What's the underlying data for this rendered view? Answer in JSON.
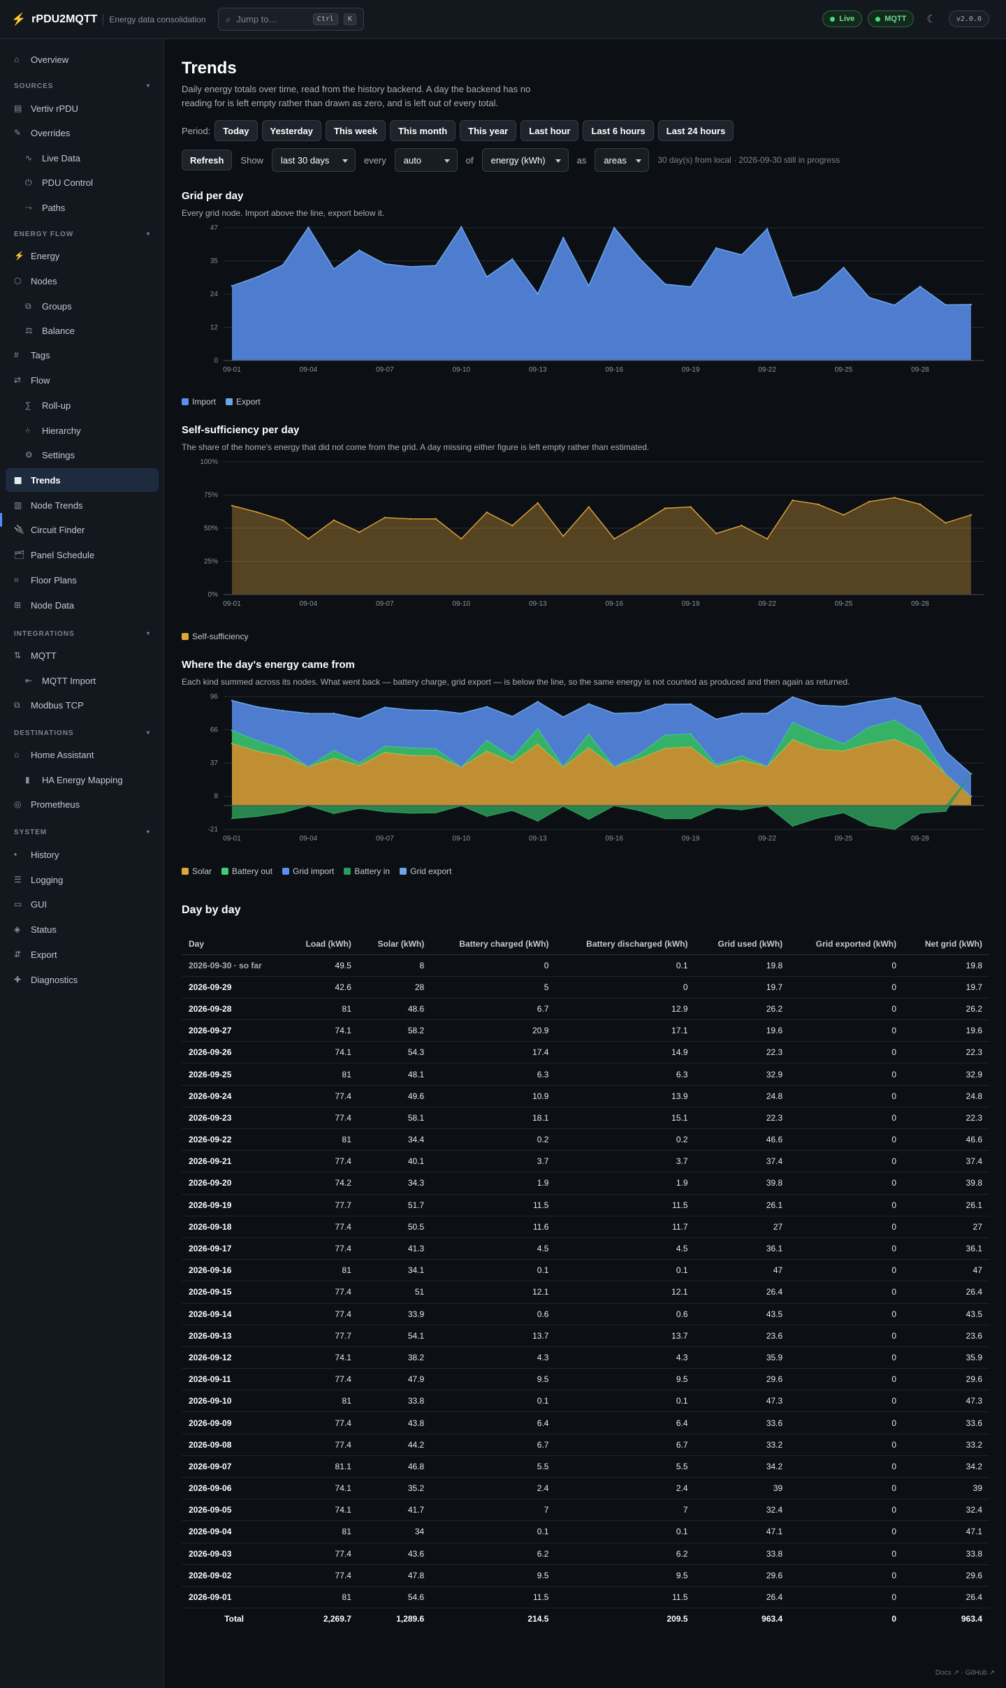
{
  "app": {
    "name": "rPDU2MQTT",
    "subtitle": "Energy data consolidation",
    "version": "v2.0.0"
  },
  "search": {
    "placeholder": "Jump to…",
    "kbd1": "Ctrl",
    "kbd2": "K"
  },
  "status": {
    "live": "Live",
    "mqtt": "MQTT"
  },
  "sidebar": {
    "overview": "Overview",
    "sources_title": "SOURCES",
    "sources": [
      "Vertiv rPDU",
      "Overrides",
      "Live Data",
      "PDU Control",
      "Paths"
    ],
    "energy_title": "ENERGY FLOW",
    "energy": [
      "Energy",
      "Nodes",
      "Groups",
      "Balance",
      "Tags",
      "Flow",
      "Roll-up",
      "Hierarchy",
      "Settings",
      "Trends",
      "Node Trends",
      "Circuit Finder",
      "Panel Schedule",
      "Floor Plans",
      "Node Data"
    ],
    "integrations_title": "INTEGRATIONS",
    "integrations": [
      "MQTT",
      "MQTT Import",
      "Modbus TCP"
    ],
    "destinations_title": "DESTINATIONS",
    "destinations": [
      "Home Assistant",
      "HA Energy Mapping",
      "Prometheus"
    ],
    "system_title": "SYSTEM",
    "system": [
      "History",
      "Logging",
      "GUI",
      "Status",
      "Export",
      "Diagnostics"
    ]
  },
  "page": {
    "title": "Trends",
    "lead": "Daily energy totals over time, read from the history backend. A day the backend has no reading for is left empty rather than drawn as zero, and is left out of every total.",
    "period_label": "Period:",
    "periods": [
      "Today",
      "Yesterday",
      "This week",
      "This month",
      "This year",
      "Last hour",
      "Last 6 hours",
      "Last 24 hours"
    ],
    "refresh": "Refresh",
    "show_label": "Show",
    "show_value": "last 30 days",
    "every_label": "every",
    "every_value": "auto",
    "of_label": "of",
    "of_value": "energy (kWh)",
    "as_label": "as",
    "as_value": "areas",
    "range_note": "30 day(s) from local · 2026-09-30 still in progress"
  },
  "sections": {
    "grid_title": "Grid per day",
    "grid_sub": "Every grid node. Import above the line, export below it.",
    "self_title": "Self-sufficiency per day",
    "self_sub": "The share of the home's energy that did not come from the grid. A day missing either figure is left empty rather than estimated.",
    "source_title": "Where the day's energy came from",
    "source_sub": "Each kind summed across its nodes. What went back — battery charge, grid export — is below the line, so the same energy is not counted as produced and then again as returned.",
    "table_title": "Day by day"
  },
  "colors": {
    "import": "#5b8ff0",
    "export": "#6aa6e8",
    "self": "#e0a63a",
    "solar": "#e0a63a",
    "battery_out": "#3ecf74",
    "grid_import": "#5b8ff0",
    "battery_in": "#2e9a58",
    "grid_export": "#6aa6e8"
  },
  "chart_data": [
    {
      "type": "area",
      "title": "Grid per day",
      "x": [
        "09-01",
        "09-02",
        "09-03",
        "09-04",
        "09-05",
        "09-06",
        "09-07",
        "09-08",
        "09-09",
        "09-10",
        "09-11",
        "09-12",
        "09-13",
        "09-14",
        "09-15",
        "09-16",
        "09-17",
        "09-18",
        "09-19",
        "09-20",
        "09-21",
        "09-22",
        "09-23",
        "09-24",
        "09-25",
        "09-26",
        "09-27",
        "09-28",
        "09-29",
        "09-30"
      ],
      "x_ticks": [
        "09-01",
        "09-04",
        "09-07",
        "09-10",
        "09-13",
        "09-16",
        "09-19",
        "09-22",
        "09-25",
        "09-28"
      ],
      "y_ticks": [
        "47",
        "35",
        "24",
        "12",
        "0"
      ],
      "ylim": [
        0,
        47
      ],
      "series": [
        {
          "name": "Import",
          "values": [
            26.4,
            29.6,
            33.8,
            47.1,
            32.4,
            39,
            34.2,
            33.2,
            33.6,
            47.3,
            29.6,
            35.9,
            23.6,
            43.5,
            26.4,
            47,
            36.1,
            27,
            26.1,
            39.8,
            37.4,
            46.6,
            22.3,
            24.8,
            32.9,
            22.3,
            19.6,
            26.2,
            19.7,
            19.8
          ]
        },
        {
          "name": "Export",
          "values": [
            0,
            0,
            0,
            0,
            0,
            0,
            0,
            0,
            0,
            0,
            0,
            0,
            0,
            0,
            0,
            0,
            0,
            0,
            0,
            0,
            0,
            0,
            0,
            0,
            0,
            0,
            0,
            0,
            0,
            0
          ]
        }
      ],
      "grid": true,
      "legend": "bottom-left"
    },
    {
      "type": "area",
      "title": "Self-sufficiency per day",
      "x": [
        "09-01",
        "09-02",
        "09-03",
        "09-04",
        "09-05",
        "09-06",
        "09-07",
        "09-08",
        "09-09",
        "09-10",
        "09-11",
        "09-12",
        "09-13",
        "09-14",
        "09-15",
        "09-16",
        "09-17",
        "09-18",
        "09-19",
        "09-20",
        "09-21",
        "09-22",
        "09-23",
        "09-24",
        "09-25",
        "09-26",
        "09-27",
        "09-28",
        "09-29",
        "09-30"
      ],
      "x_ticks": [
        "09-01",
        "09-04",
        "09-07",
        "09-10",
        "09-13",
        "09-16",
        "09-19",
        "09-22",
        "09-25",
        "09-28"
      ],
      "y_ticks": [
        "100%",
        "75%",
        "50%",
        "25%",
        "0%"
      ],
      "ylim": [
        0,
        100
      ],
      "series": [
        {
          "name": "Self-sufficiency",
          "values": [
            67,
            62,
            56,
            42,
            56,
            47,
            58,
            57,
            57,
            42,
            62,
            52,
            69,
            44,
            66,
            42,
            53,
            65,
            66,
            46,
            52,
            42,
            71,
            68,
            60,
            70,
            73,
            68,
            54,
            60
          ]
        }
      ],
      "grid": true,
      "legend": "bottom-left"
    },
    {
      "type": "area",
      "title": "Where the day's energy came from",
      "x": [
        "09-01",
        "09-02",
        "09-03",
        "09-04",
        "09-05",
        "09-06",
        "09-07",
        "09-08",
        "09-09",
        "09-10",
        "09-11",
        "09-12",
        "09-13",
        "09-14",
        "09-15",
        "09-16",
        "09-17",
        "09-18",
        "09-19",
        "09-20",
        "09-21",
        "09-22",
        "09-23",
        "09-24",
        "09-25",
        "09-26",
        "09-27",
        "09-28",
        "09-29",
        "09-30"
      ],
      "x_ticks": [
        "09-01",
        "09-04",
        "09-07",
        "09-10",
        "09-13",
        "09-16",
        "09-19",
        "09-22",
        "09-25",
        "09-28"
      ],
      "y_ticks": [
        "96",
        "66",
        "37",
        "8",
        "-21"
      ],
      "ylim": [
        -21,
        96
      ],
      "series": [
        {
          "name": "Solar",
          "values": [
            54.6,
            47.8,
            43.6,
            34,
            41.7,
            35.2,
            46.8,
            44.2,
            43.8,
            33.8,
            47.9,
            38.2,
            54.1,
            33.9,
            51,
            34.1,
            41.3,
            50.5,
            51.7,
            34.3,
            40.1,
            34.4,
            58.1,
            49.6,
            48.1,
            54.3,
            58.2,
            48.6,
            28,
            8
          ]
        },
        {
          "name": "Battery out",
          "values": [
            11.5,
            9.5,
            6.2,
            0.1,
            7,
            2.4,
            5.5,
            6.7,
            6.4,
            0.1,
            9.5,
            4.3,
            13.7,
            0.6,
            12.1,
            0.1,
            4.5,
            11.7,
            11.5,
            1.9,
            3.7,
            0.2,
            15.1,
            13.9,
            6.3,
            14.9,
            17.1,
            12.9,
            0,
            0.1
          ]
        },
        {
          "name": "Grid import",
          "values": [
            26.4,
            29.6,
            33.8,
            47.1,
            32.4,
            39,
            34.2,
            33.2,
            33.6,
            47.3,
            29.6,
            35.9,
            23.6,
            43.5,
            26.4,
            47,
            36.1,
            27,
            26.1,
            39.8,
            37.4,
            46.6,
            22.3,
            24.8,
            32.9,
            22.3,
            19.6,
            26.2,
            19.7,
            19.8
          ]
        },
        {
          "name": "Battery in",
          "values": [
            -11.5,
            -9.5,
            -6.2,
            -0.1,
            -7,
            -2.4,
            -5.5,
            -6.7,
            -6.4,
            -0.1,
            -9.5,
            -4.3,
            -13.7,
            -0.6,
            -12.1,
            -0.1,
            -4.5,
            -11.6,
            -11.5,
            -1.9,
            -3.7,
            -0.2,
            -18.1,
            -10.9,
            -6.3,
            -17.4,
            -20.9,
            -6.7,
            -5,
            0
          ]
        },
        {
          "name": "Grid export",
          "values": [
            0,
            0,
            0,
            0,
            0,
            0,
            0,
            0,
            0,
            0,
            0,
            0,
            0,
            0,
            0,
            0,
            0,
            0,
            0,
            0,
            0,
            0,
            0,
            0,
            0,
            0,
            0,
            0,
            0,
            0
          ]
        }
      ],
      "grid": true,
      "legend": "bottom-left"
    }
  ],
  "table": {
    "headers": [
      "Day",
      "Load (kWh)",
      "Solar (kWh)",
      "Battery charged (kWh)",
      "Battery discharged (kWh)",
      "Grid used (kWh)",
      "Grid exported (kWh)",
      "Net grid (kWh)"
    ],
    "rows": [
      [
        "2026-09-30 · so far",
        "49.5",
        "8",
        "0",
        "0.1",
        "19.8",
        "0",
        "19.8"
      ],
      [
        "2026-09-29",
        "42.6",
        "28",
        "5",
        "0",
        "19.7",
        "0",
        "19.7"
      ],
      [
        "2026-09-28",
        "81",
        "48.6",
        "6.7",
        "12.9",
        "26.2",
        "0",
        "26.2"
      ],
      [
        "2026-09-27",
        "74.1",
        "58.2",
        "20.9",
        "17.1",
        "19.6",
        "0",
        "19.6"
      ],
      [
        "2026-09-26",
        "74.1",
        "54.3",
        "17.4",
        "14.9",
        "22.3",
        "0",
        "22.3"
      ],
      [
        "2026-09-25",
        "81",
        "48.1",
        "6.3",
        "6.3",
        "32.9",
        "0",
        "32.9"
      ],
      [
        "2026-09-24",
        "77.4",
        "49.6",
        "10.9",
        "13.9",
        "24.8",
        "0",
        "24.8"
      ],
      [
        "2026-09-23",
        "77.4",
        "58.1",
        "18.1",
        "15.1",
        "22.3",
        "0",
        "22.3"
      ],
      [
        "2026-09-22",
        "81",
        "34.4",
        "0.2",
        "0.2",
        "46.6",
        "0",
        "46.6"
      ],
      [
        "2026-09-21",
        "77.4",
        "40.1",
        "3.7",
        "3.7",
        "37.4",
        "0",
        "37.4"
      ],
      [
        "2026-09-20",
        "74.2",
        "34.3",
        "1.9",
        "1.9",
        "39.8",
        "0",
        "39.8"
      ],
      [
        "2026-09-19",
        "77.7",
        "51.7",
        "11.5",
        "11.5",
        "26.1",
        "0",
        "26.1"
      ],
      [
        "2026-09-18",
        "77.4",
        "50.5",
        "11.6",
        "11.7",
        "27",
        "0",
        "27"
      ],
      [
        "2026-09-17",
        "77.4",
        "41.3",
        "4.5",
        "4.5",
        "36.1",
        "0",
        "36.1"
      ],
      [
        "2026-09-16",
        "81",
        "34.1",
        "0.1",
        "0.1",
        "47",
        "0",
        "47"
      ],
      [
        "2026-09-15",
        "77.4",
        "51",
        "12.1",
        "12.1",
        "26.4",
        "0",
        "26.4"
      ],
      [
        "2026-09-14",
        "77.4",
        "33.9",
        "0.6",
        "0.6",
        "43.5",
        "0",
        "43.5"
      ],
      [
        "2026-09-13",
        "77.7",
        "54.1",
        "13.7",
        "13.7",
        "23.6",
        "0",
        "23.6"
      ],
      [
        "2026-09-12",
        "74.1",
        "38.2",
        "4.3",
        "4.3",
        "35.9",
        "0",
        "35.9"
      ],
      [
        "2026-09-11",
        "77.4",
        "47.9",
        "9.5",
        "9.5",
        "29.6",
        "0",
        "29.6"
      ],
      [
        "2026-09-10",
        "81",
        "33.8",
        "0.1",
        "0.1",
        "47.3",
        "0",
        "47.3"
      ],
      [
        "2026-09-09",
        "77.4",
        "43.8",
        "6.4",
        "6.4",
        "33.6",
        "0",
        "33.6"
      ],
      [
        "2026-09-08",
        "77.4",
        "44.2",
        "6.7",
        "6.7",
        "33.2",
        "0",
        "33.2"
      ],
      [
        "2026-09-07",
        "81.1",
        "46.8",
        "5.5",
        "5.5",
        "34.2",
        "0",
        "34.2"
      ],
      [
        "2026-09-06",
        "74.1",
        "35.2",
        "2.4",
        "2.4",
        "39",
        "0",
        "39"
      ],
      [
        "2026-09-05",
        "74.1",
        "41.7",
        "7",
        "7",
        "32.4",
        "0",
        "32.4"
      ],
      [
        "2026-09-04",
        "81",
        "34",
        "0.1",
        "0.1",
        "47.1",
        "0",
        "47.1"
      ],
      [
        "2026-09-03",
        "77.4",
        "43.6",
        "6.2",
        "6.2",
        "33.8",
        "0",
        "33.8"
      ],
      [
        "2026-09-02",
        "77.4",
        "47.8",
        "9.5",
        "9.5",
        "29.6",
        "0",
        "29.6"
      ],
      [
        "2026-09-01",
        "81",
        "54.6",
        "11.5",
        "11.5",
        "26.4",
        "0",
        "26.4"
      ]
    ],
    "total": [
      "Total",
      "2,269.7",
      "1,289.6",
      "214.5",
      "209.5",
      "963.4",
      "0",
      "963.4"
    ]
  },
  "footer": "Docs ↗ · GitHub ↗"
}
